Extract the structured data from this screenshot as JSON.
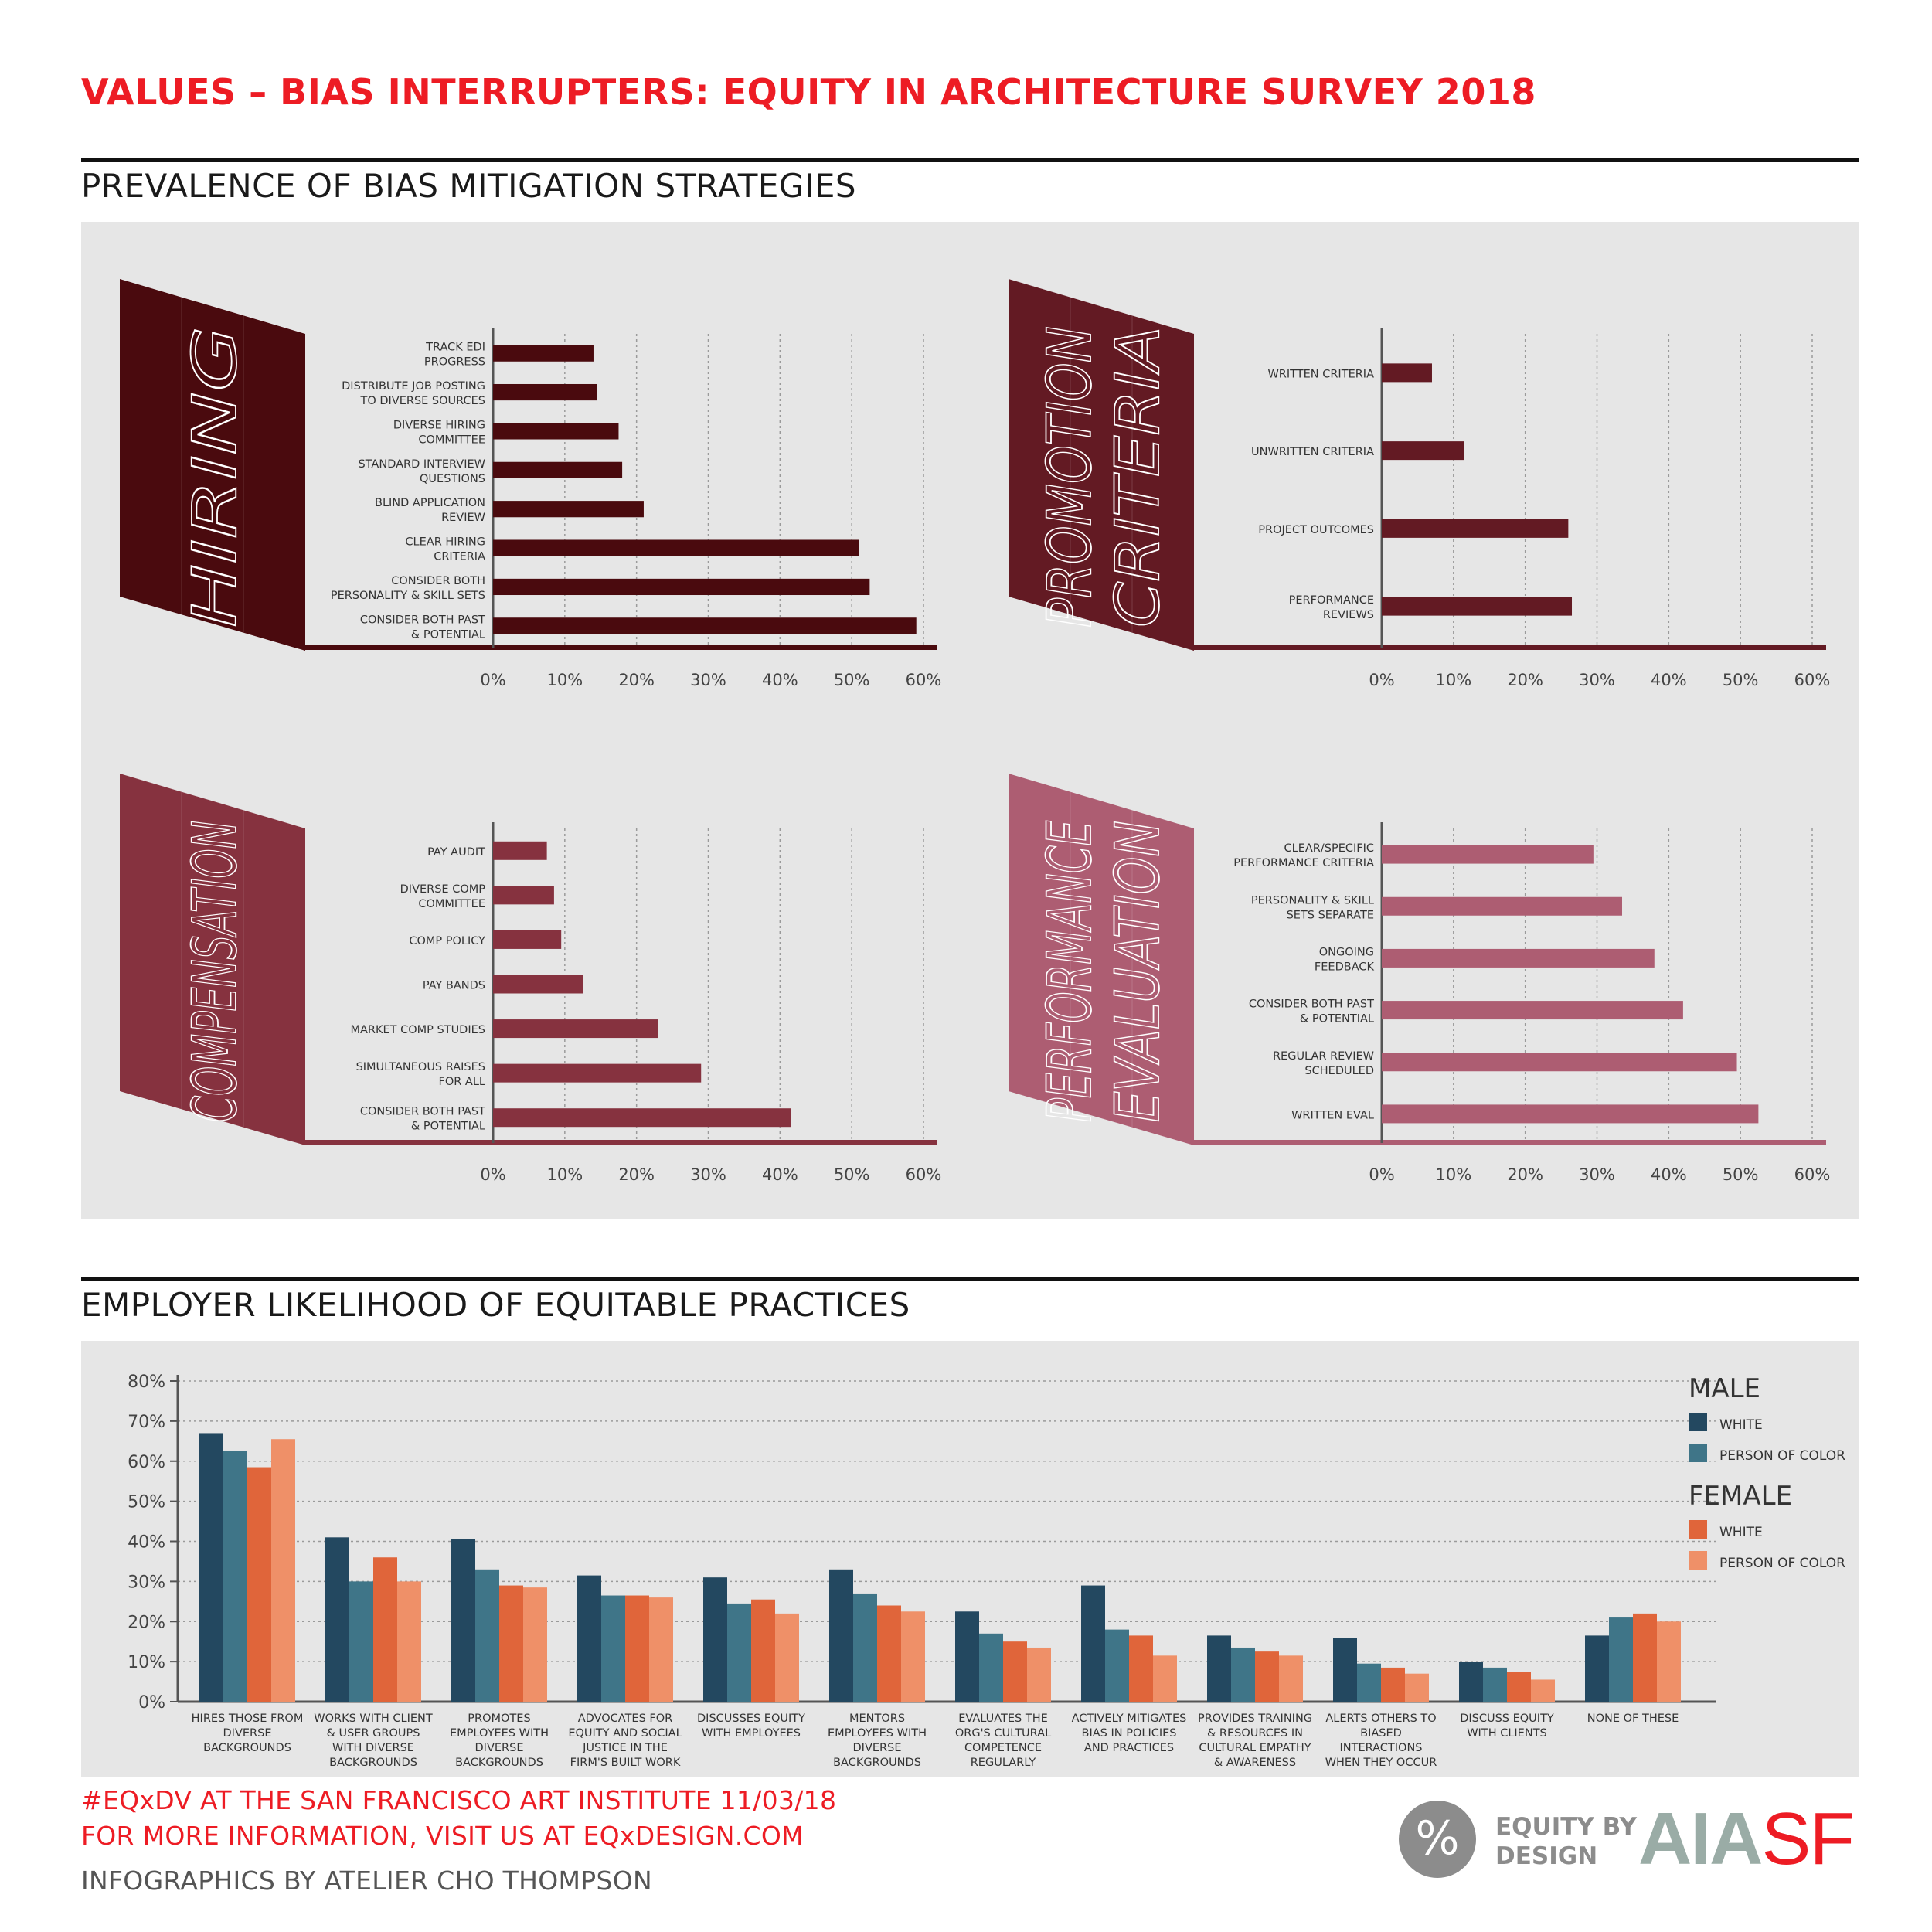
{
  "header": {
    "title": "VALUES – BIAS INTERRUPTERS: EQUITY IN ARCHITECTURE SURVEY 2018",
    "section1_title": "PREVALENCE OF BIAS MITIGATION STRATEGIES",
    "section2_title": "EMPLOYER LIKELIHOOD OF EQUITABLE PRACTICES"
  },
  "colors": {
    "hiring": "#4a0a0e",
    "promotion": "#631a23",
    "compensation": "#86323f",
    "performance": "#ad5d72",
    "male_white": "#234860",
    "male_poc": "#3f7588",
    "female_white": "#e0653a",
    "female_poc": "#ef9068"
  },
  "chart_data": [
    {
      "type": "bar",
      "orientation": "horizontal",
      "panel_label": "HIRING",
      "categories": [
        [
          "TRACK EDI",
          "PROGRESS"
        ],
        [
          "DISTRIBUTE JOB POSTING",
          "TO DIVERSE SOURCES"
        ],
        [
          "DIVERSE HIRING",
          "COMMITTEE"
        ],
        [
          "STANDARD INTERVIEW",
          "QUESTIONS"
        ],
        [
          "BLIND APPLICATION",
          "REVIEW"
        ],
        [
          "CLEAR HIRING",
          "CRITERIA"
        ],
        [
          "CONSIDER BOTH",
          "PERSONALITY & SKILL SETS"
        ],
        [
          "CONSIDER BOTH PAST",
          "& POTENTIAL"
        ]
      ],
      "values": [
        14,
        14.5,
        17.5,
        18,
        21,
        51,
        52.5,
        59
      ],
      "xlim": [
        0,
        60
      ],
      "xticks": [
        "0%",
        "10%",
        "20%",
        "30%",
        "40%",
        "50%",
        "60%"
      ]
    },
    {
      "type": "bar",
      "orientation": "horizontal",
      "panel_label": "PROMOTION CRITERIA",
      "categories": [
        [
          "WRITTEN CRITERIA"
        ],
        [
          "UNWRITTEN CRITERIA"
        ],
        [
          "PROJECT OUTCOMES"
        ],
        [
          "PERFORMANCE",
          "REVIEWS"
        ]
      ],
      "values": [
        7,
        11.5,
        26,
        26.5
      ],
      "xlim": [
        0,
        60
      ],
      "xticks": [
        "0%",
        "10%",
        "20%",
        "30%",
        "40%",
        "50%",
        "60%"
      ]
    },
    {
      "type": "bar",
      "orientation": "horizontal",
      "panel_label": "COMPENSATION",
      "categories": [
        [
          "PAY AUDIT"
        ],
        [
          "DIVERSE COMP",
          "COMMITTEE"
        ],
        [
          "COMP POLICY"
        ],
        [
          "PAY BANDS"
        ],
        [
          "MARKET COMP STUDIES"
        ],
        [
          "SIMULTANEOUS RAISES",
          "FOR ALL"
        ],
        [
          "CONSIDER BOTH PAST",
          "& POTENTIAL"
        ]
      ],
      "values": [
        7.5,
        8.5,
        9.5,
        12.5,
        23,
        29,
        41.5
      ],
      "xlim": [
        0,
        60
      ],
      "xticks": [
        "0%",
        "10%",
        "20%",
        "30%",
        "40%",
        "50%",
        "60%"
      ]
    },
    {
      "type": "bar",
      "orientation": "horizontal",
      "panel_label": "PERFORMANCE EVALUATION",
      "categories": [
        [
          "CLEAR/SPECIFIC",
          "PERFORMANCE CRITERIA"
        ],
        [
          "PERSONALITY & SKILL",
          "SETS SEPARATE"
        ],
        [
          "ONGOING",
          "FEEDBACK"
        ],
        [
          "CONSIDER BOTH PAST",
          "& POTENTIAL"
        ],
        [
          "REGULAR REVIEW",
          "SCHEDULED"
        ],
        [
          "WRITTEN EVAL"
        ]
      ],
      "values": [
        29.5,
        33.5,
        38,
        42,
        49.5,
        52.5
      ],
      "xlim": [
        0,
        60
      ],
      "xticks": [
        "0%",
        "10%",
        "20%",
        "30%",
        "40%",
        "50%",
        "60%"
      ]
    },
    {
      "type": "bar",
      "orientation": "vertical",
      "title": "EMPLOYER LIKELIHOOD OF EQUITABLE PRACTICES",
      "categories": [
        [
          "HIRES THOSE FROM",
          "DIVERSE",
          "BACKGROUNDS"
        ],
        [
          "WORKS WITH CLIENT",
          "& USER GROUPS",
          "WITH DIVERSE",
          "BACKGROUNDS"
        ],
        [
          "PROMOTES",
          "EMPLOYEES WITH",
          "DIVERSE",
          "BACKGROUNDS"
        ],
        [
          "ADVOCATES FOR",
          "EQUITY AND SOCIAL",
          "JUSTICE IN THE",
          "FIRM'S BUILT WORK"
        ],
        [
          "DISCUSSES EQUITY",
          "WITH EMPLOYEES"
        ],
        [
          "MENTORS",
          "EMPLOYEES WITH",
          "DIVERSE",
          "BACKGROUNDS"
        ],
        [
          "EVALUATES THE",
          "ORG'S CULTURAL",
          "COMPETENCE",
          "REGULARLY"
        ],
        [
          "ACTIVELY MITIGATES",
          "BIAS IN POLICIES",
          "AND PRACTICES"
        ],
        [
          "PROVIDES TRAINING",
          "& RESOURCES IN",
          "CULTURAL EMPATHY",
          "& AWARENESS"
        ],
        [
          "ALERTS OTHERS TO",
          "BIASED",
          "INTERACTIONS",
          "WHEN THEY OCCUR"
        ],
        [
          "DISCUSS EQUITY",
          "WITH CLIENTS"
        ],
        [
          "NONE OF THESE"
        ]
      ],
      "series": [
        {
          "name": "MALE WHITE",
          "values": [
            67,
            41,
            40.5,
            31.5,
            31,
            33,
            22.5,
            29,
            16.5,
            16,
            10,
            16.5
          ]
        },
        {
          "name": "MALE PERSON OF COLOR",
          "values": [
            62.5,
            30,
            33,
            26.5,
            24.5,
            27,
            17,
            18,
            13.5,
            9.5,
            8.5,
            21
          ]
        },
        {
          "name": "FEMALE WHITE",
          "values": [
            58.5,
            36,
            29,
            26.5,
            25.5,
            24,
            15,
            16.5,
            12.5,
            8.5,
            7.5,
            22
          ]
        },
        {
          "name": "FEMALE PERSON OF COLOR",
          "values": [
            65.5,
            30,
            28.5,
            26,
            22,
            22.5,
            13.5,
            11.5,
            11.5,
            7,
            5.5,
            20
          ]
        }
      ],
      "ylim": [
        0,
        80
      ],
      "yticks": [
        "0%",
        "10%",
        "20%",
        "30%",
        "40%",
        "50%",
        "60%",
        "70%",
        "80%"
      ],
      "legend": {
        "male_heading": "MALE",
        "female_heading": "FEMALE",
        "white_label": "WHITE",
        "poc_label": "PERSON OF COLOR",
        "position": "top-right"
      }
    }
  ],
  "footer": {
    "line1": "#EQxDV AT THE SAN FRANCISCO ART INSTITUTE 11/03/18",
    "line2": "FOR MORE INFORMATION, VISIT US AT EQxDESIGN.COM",
    "line3": "INFOGRAPHICS BY ATELIER CHO THOMPSON",
    "logo_symbol": "%",
    "logo_text": "EQUITY BY\nDESIGN",
    "aia": "AIA",
    "sf": "SF"
  }
}
